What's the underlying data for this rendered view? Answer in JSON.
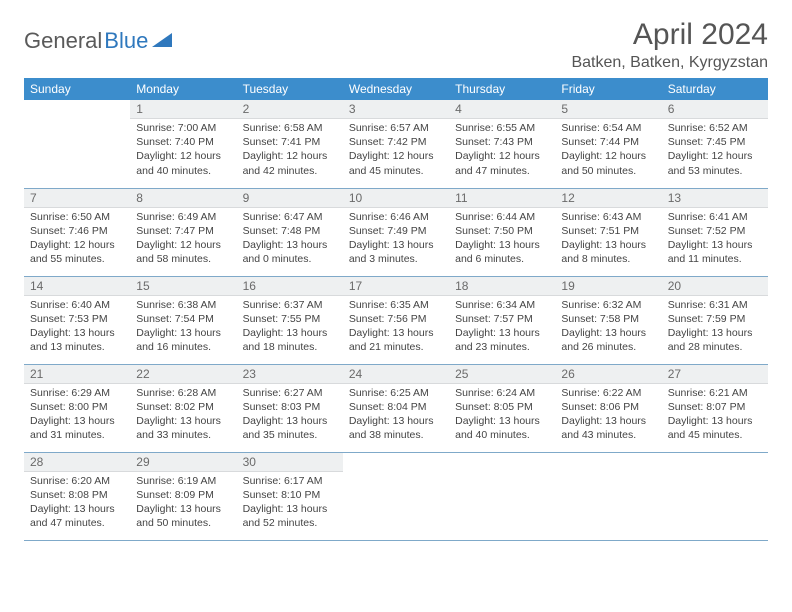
{
  "brand": {
    "part1": "General",
    "part2": "Blue"
  },
  "title": "April 2024",
  "location": "Batken, Batken, Kyrgyzstan",
  "colors": {
    "header_bg": "#3c8dcc",
    "header_text": "#ffffff",
    "daynum_bg": "#eef0f1",
    "border": "#7fa9c9",
    "body_text": "#444444",
    "brand_gray": "#5a5a5a",
    "brand_blue": "#2f78bd"
  },
  "weekdays": [
    "Sunday",
    "Monday",
    "Tuesday",
    "Wednesday",
    "Thursday",
    "Friday",
    "Saturday"
  ],
  "start_offset": 1,
  "days": [
    {
      "n": 1,
      "sunrise": "7:00 AM",
      "sunset": "7:40 PM",
      "daylight": "12 hours and 40 minutes."
    },
    {
      "n": 2,
      "sunrise": "6:58 AM",
      "sunset": "7:41 PM",
      "daylight": "12 hours and 42 minutes."
    },
    {
      "n": 3,
      "sunrise": "6:57 AM",
      "sunset": "7:42 PM",
      "daylight": "12 hours and 45 minutes."
    },
    {
      "n": 4,
      "sunrise": "6:55 AM",
      "sunset": "7:43 PM",
      "daylight": "12 hours and 47 minutes."
    },
    {
      "n": 5,
      "sunrise": "6:54 AM",
      "sunset": "7:44 PM",
      "daylight": "12 hours and 50 minutes."
    },
    {
      "n": 6,
      "sunrise": "6:52 AM",
      "sunset": "7:45 PM",
      "daylight": "12 hours and 53 minutes."
    },
    {
      "n": 7,
      "sunrise": "6:50 AM",
      "sunset": "7:46 PM",
      "daylight": "12 hours and 55 minutes."
    },
    {
      "n": 8,
      "sunrise": "6:49 AM",
      "sunset": "7:47 PM",
      "daylight": "12 hours and 58 minutes."
    },
    {
      "n": 9,
      "sunrise": "6:47 AM",
      "sunset": "7:48 PM",
      "daylight": "13 hours and 0 minutes."
    },
    {
      "n": 10,
      "sunrise": "6:46 AM",
      "sunset": "7:49 PM",
      "daylight": "13 hours and 3 minutes."
    },
    {
      "n": 11,
      "sunrise": "6:44 AM",
      "sunset": "7:50 PM",
      "daylight": "13 hours and 6 minutes."
    },
    {
      "n": 12,
      "sunrise": "6:43 AM",
      "sunset": "7:51 PM",
      "daylight": "13 hours and 8 minutes."
    },
    {
      "n": 13,
      "sunrise": "6:41 AM",
      "sunset": "7:52 PM",
      "daylight": "13 hours and 11 minutes."
    },
    {
      "n": 14,
      "sunrise": "6:40 AM",
      "sunset": "7:53 PM",
      "daylight": "13 hours and 13 minutes."
    },
    {
      "n": 15,
      "sunrise": "6:38 AM",
      "sunset": "7:54 PM",
      "daylight": "13 hours and 16 minutes."
    },
    {
      "n": 16,
      "sunrise": "6:37 AM",
      "sunset": "7:55 PM",
      "daylight": "13 hours and 18 minutes."
    },
    {
      "n": 17,
      "sunrise": "6:35 AM",
      "sunset": "7:56 PM",
      "daylight": "13 hours and 21 minutes."
    },
    {
      "n": 18,
      "sunrise": "6:34 AM",
      "sunset": "7:57 PM",
      "daylight": "13 hours and 23 minutes."
    },
    {
      "n": 19,
      "sunrise": "6:32 AM",
      "sunset": "7:58 PM",
      "daylight": "13 hours and 26 minutes."
    },
    {
      "n": 20,
      "sunrise": "6:31 AM",
      "sunset": "7:59 PM",
      "daylight": "13 hours and 28 minutes."
    },
    {
      "n": 21,
      "sunrise": "6:29 AM",
      "sunset": "8:00 PM",
      "daylight": "13 hours and 31 minutes."
    },
    {
      "n": 22,
      "sunrise": "6:28 AM",
      "sunset": "8:02 PM",
      "daylight": "13 hours and 33 minutes."
    },
    {
      "n": 23,
      "sunrise": "6:27 AM",
      "sunset": "8:03 PM",
      "daylight": "13 hours and 35 minutes."
    },
    {
      "n": 24,
      "sunrise": "6:25 AM",
      "sunset": "8:04 PM",
      "daylight": "13 hours and 38 minutes."
    },
    {
      "n": 25,
      "sunrise": "6:24 AM",
      "sunset": "8:05 PM",
      "daylight": "13 hours and 40 minutes."
    },
    {
      "n": 26,
      "sunrise": "6:22 AM",
      "sunset": "8:06 PM",
      "daylight": "13 hours and 43 minutes."
    },
    {
      "n": 27,
      "sunrise": "6:21 AM",
      "sunset": "8:07 PM",
      "daylight": "13 hours and 45 minutes."
    },
    {
      "n": 28,
      "sunrise": "6:20 AM",
      "sunset": "8:08 PM",
      "daylight": "13 hours and 47 minutes."
    },
    {
      "n": 29,
      "sunrise": "6:19 AM",
      "sunset": "8:09 PM",
      "daylight": "13 hours and 50 minutes."
    },
    {
      "n": 30,
      "sunrise": "6:17 AM",
      "sunset": "8:10 PM",
      "daylight": "13 hours and 52 minutes."
    }
  ],
  "labels": {
    "sunrise": "Sunrise:",
    "sunset": "Sunset:",
    "daylight": "Daylight:"
  }
}
